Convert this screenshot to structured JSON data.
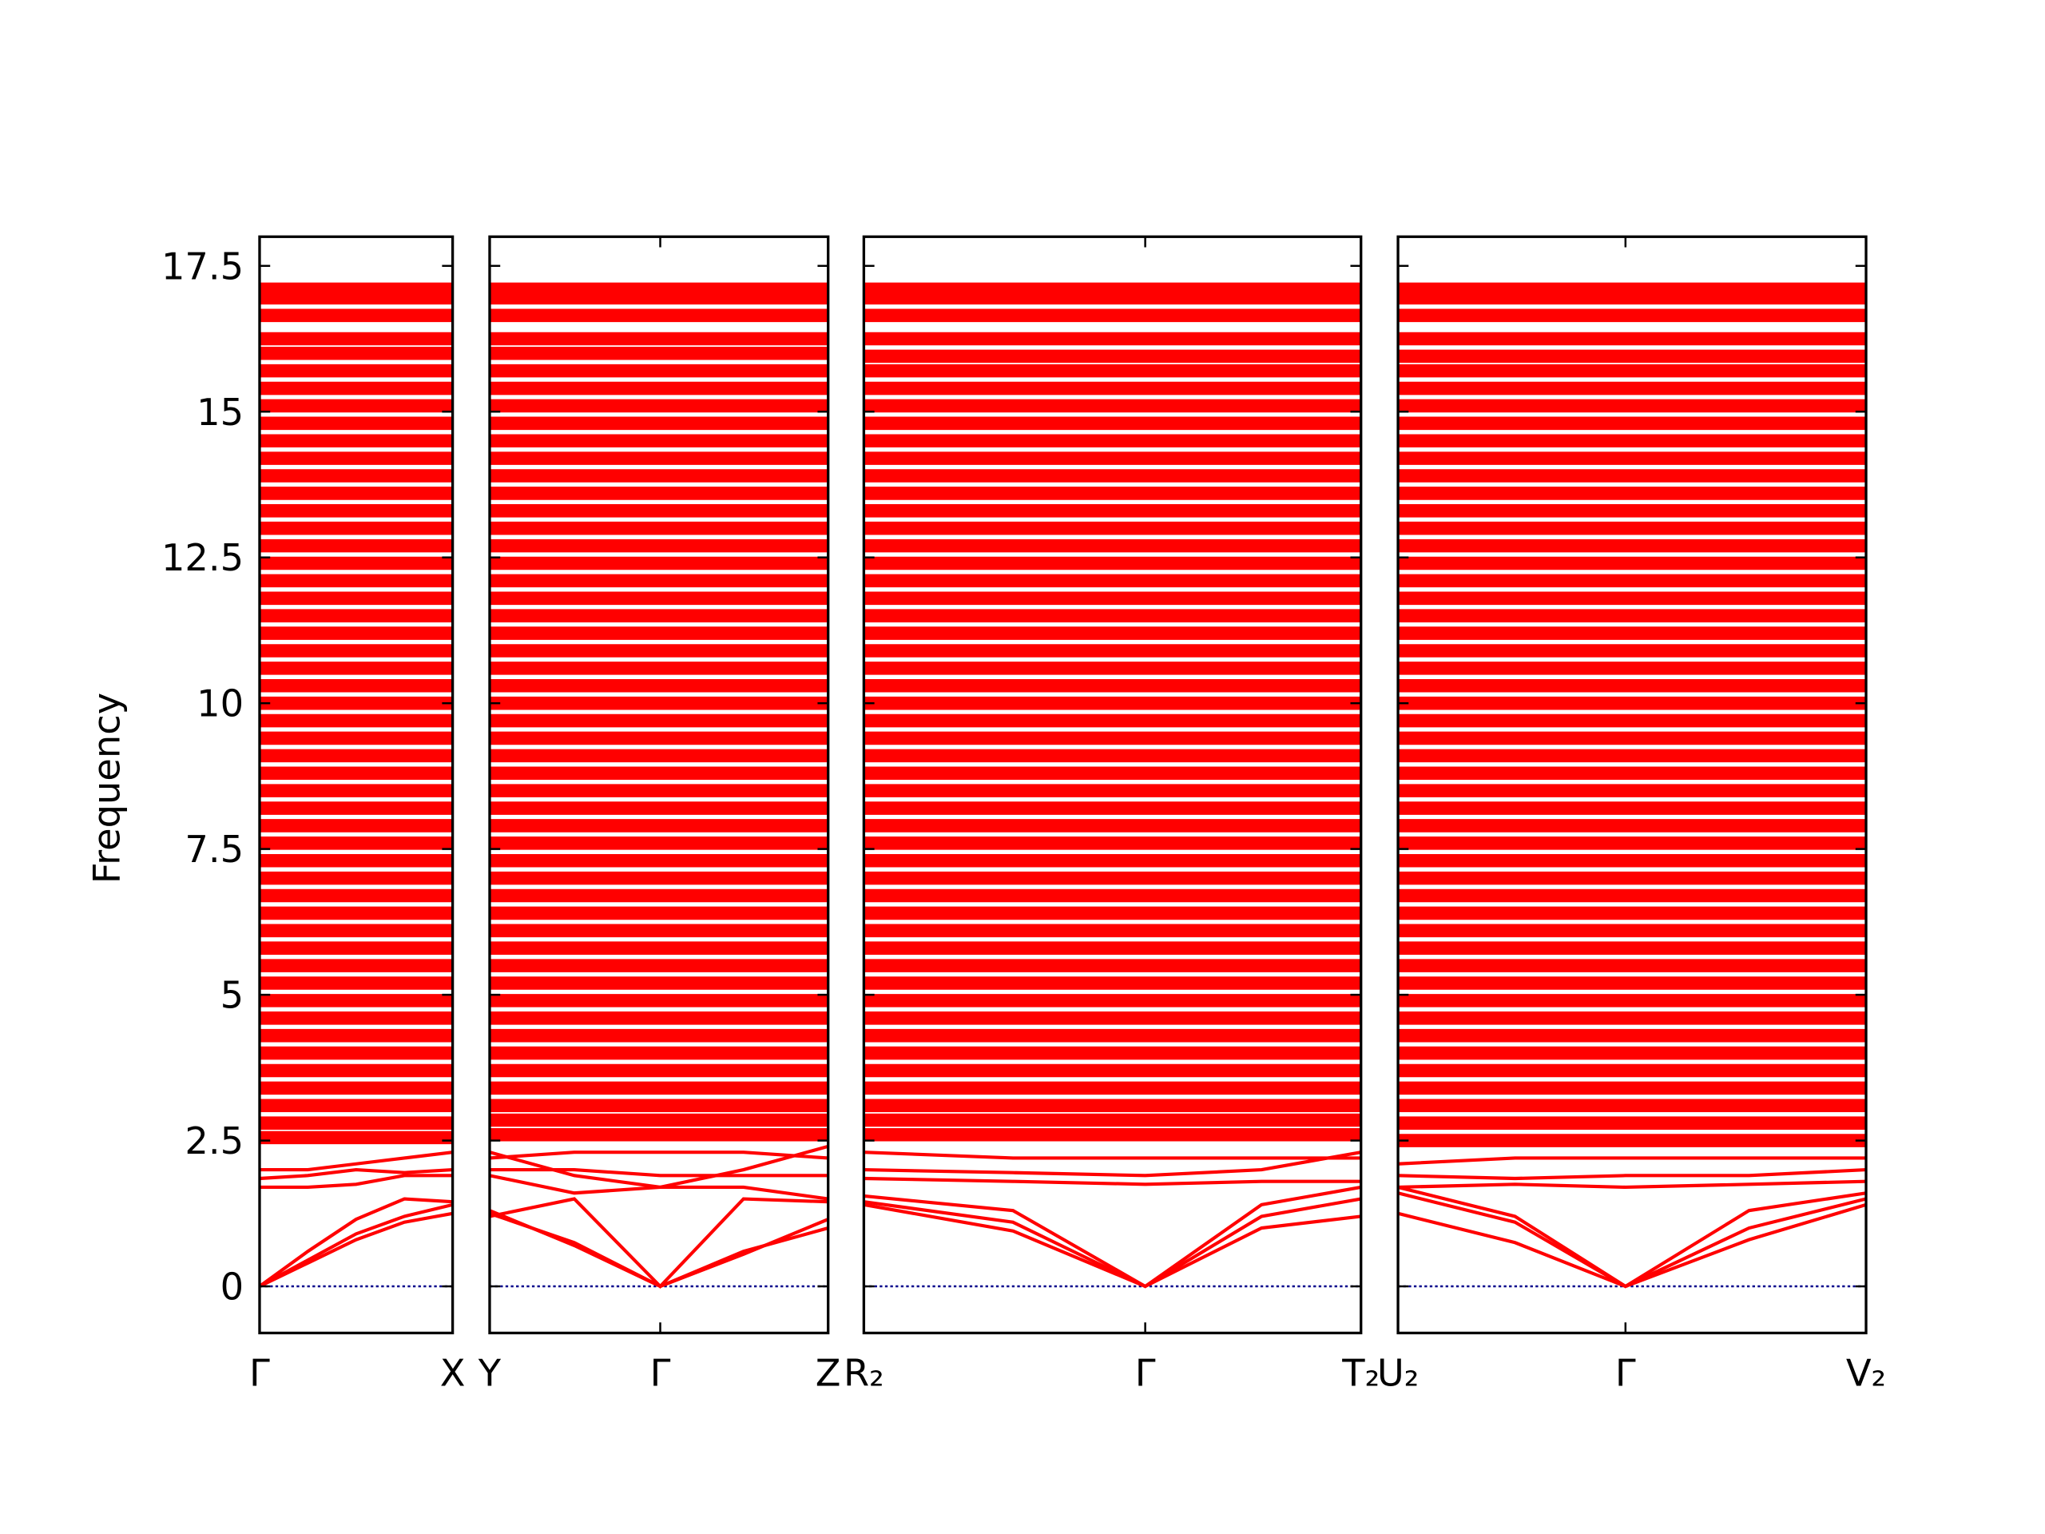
{
  "chart_data": [
    {
      "type": "line",
      "ylabel": "Frequency",
      "ylim": [
        -0.8,
        18.0
      ],
      "yticks": [
        0.0,
        2.5,
        5.0,
        7.5,
        10.0,
        12.5,
        15.0,
        17.5
      ],
      "color": "#ff0000",
      "zero_line_color": "#00008b",
      "xlim": [
        0,
        1
      ],
      "xticks": [
        {
          "value": 0,
          "label": "Γ"
        },
        {
          "value": 1,
          "label": "X"
        }
      ],
      "x": [
        0,
        0.25,
        0.5,
        0.75,
        1
      ],
      "series": [
        {
          "values": [
            0,
            0.4,
            0.8,
            1.1,
            1.25
          ]
        },
        {
          "values": [
            0,
            0.45,
            0.9,
            1.2,
            1.4
          ]
        },
        {
          "values": [
            0,
            0.6,
            1.15,
            1.5,
            1.45
          ]
        },
        {
          "values": [
            1.7,
            1.7,
            1.75,
            1.9,
            1.9
          ]
        },
        {
          "values": [
            1.85,
            1.9,
            2.0,
            1.95,
            2.0
          ]
        },
        {
          "values": [
            2.0,
            2.0,
            2.1,
            2.2,
            2.3
          ]
        }
      ],
      "flat_bands": [
        2.55,
        2.8,
        3.1,
        3.4,
        3.7,
        4.0,
        4.3,
        4.6,
        4.9,
        5.2,
        5.5,
        5.8,
        6.1,
        6.4,
        6.7,
        7.0,
        7.3,
        7.6,
        7.9,
        8.2,
        8.5,
        8.8,
        9.1,
        9.4,
        9.7,
        10.0,
        10.3,
        10.6,
        10.9,
        11.2,
        11.5,
        11.8,
        12.1,
        12.4,
        12.7,
        13.0,
        13.3,
        13.6,
        13.9,
        14.2,
        14.5,
        14.8,
        15.1,
        15.4,
        15.7,
        16.0,
        16.25,
        16.65,
        16.95,
        17.1
      ]
    },
    {
      "type": "line",
      "color": "#ff0000",
      "zero_line_color": "#00008b",
      "xlim": [
        0,
        1
      ],
      "xticks": [
        {
          "value": 0,
          "label": "Y"
        },
        {
          "value": 0.504,
          "label": "Γ"
        },
        {
          "value": 1,
          "label": "Z"
        }
      ],
      "x": [
        0,
        0.25,
        0.504,
        0.75,
        1
      ],
      "series": [
        {
          "values": [
            1.25,
            0.75,
            0,
            0.6,
            1.0
          ]
        },
        {
          "values": [
            1.3,
            0.7,
            0,
            0.55,
            1.15
          ]
        },
        {
          "values": [
            1.2,
            1.5,
            0,
            1.5,
            1.45
          ]
        },
        {
          "values": [
            1.9,
            1.6,
            1.7,
            1.7,
            1.5
          ]
        },
        {
          "values": [
            2.3,
            1.9,
            1.7,
            2.0,
            2.4
          ]
        },
        {
          "values": [
            2.0,
            2.0,
            1.9,
            1.9,
            1.9
          ]
        },
        {
          "values": [
            2.2,
            2.3,
            2.3,
            2.3,
            2.2
          ]
        }
      ],
      "flat_bands": [
        2.6,
        2.85,
        3.1,
        3.4,
        3.7,
        4.0,
        4.3,
        4.6,
        4.9,
        5.2,
        5.5,
        5.8,
        6.1,
        6.4,
        6.7,
        7.0,
        7.3,
        7.6,
        7.9,
        8.2,
        8.5,
        8.8,
        9.1,
        9.4,
        9.7,
        10.0,
        10.3,
        10.6,
        10.9,
        11.2,
        11.5,
        11.8,
        12.1,
        12.4,
        12.7,
        13.0,
        13.3,
        13.6,
        13.9,
        14.2,
        14.5,
        14.8,
        15.1,
        15.4,
        15.7,
        16.0,
        16.25,
        16.65,
        16.95,
        17.1
      ]
    },
    {
      "type": "line",
      "color": "#ff0000",
      "zero_line_color": "#00008b",
      "xlim": [
        0,
        1
      ],
      "xticks": [
        {
          "value": 0,
          "label": "R₂"
        },
        {
          "value": 0.566,
          "label": "Γ"
        },
        {
          "value": 1,
          "label": "T₂"
        }
      ],
      "x": [
        0,
        0.3,
        0.566,
        0.8,
        1
      ],
      "series": [
        {
          "values": [
            1.55,
            1.3,
            0,
            1.0,
            1.2
          ]
        },
        {
          "values": [
            1.45,
            1.1,
            0,
            1.2,
            1.5
          ]
        },
        {
          "values": [
            1.4,
            0.95,
            0,
            1.4,
            1.7
          ]
        },
        {
          "values": [
            1.85,
            1.8,
            1.75,
            1.8,
            1.8
          ]
        },
        {
          "values": [
            2.0,
            1.95,
            1.9,
            2.0,
            2.3
          ]
        },
        {
          "values": [
            2.3,
            2.2,
            2.2,
            2.2,
            2.2
          ]
        }
      ],
      "flat_bands": [
        2.6,
        2.85,
        3.1,
        3.4,
        3.7,
        4.0,
        4.3,
        4.6,
        4.9,
        5.2,
        5.5,
        5.8,
        6.1,
        6.4,
        6.7,
        7.0,
        7.3,
        7.6,
        7.9,
        8.2,
        8.5,
        8.8,
        9.1,
        9.4,
        9.7,
        10.0,
        10.3,
        10.6,
        10.9,
        11.2,
        11.5,
        11.8,
        12.1,
        12.4,
        12.7,
        13.0,
        13.3,
        13.6,
        13.9,
        14.2,
        14.5,
        14.8,
        15.1,
        15.4,
        15.7,
        15.95,
        16.25,
        16.65,
        16.95,
        17.1
      ]
    },
    {
      "type": "line",
      "color": "#ff0000",
      "zero_line_color": "#00008b",
      "xlim": [
        0,
        1
      ],
      "xticks": [
        {
          "value": 0,
          "label": "U₂"
        },
        {
          "value": 0.486,
          "label": "Γ"
        },
        {
          "value": 1,
          "label": "V₂"
        }
      ],
      "x": [
        0,
        0.25,
        0.486,
        0.75,
        1
      ],
      "series": [
        {
          "values": [
            1.25,
            0.75,
            0,
            0.8,
            1.4
          ]
        },
        {
          "values": [
            1.6,
            1.1,
            0,
            1.0,
            1.5
          ]
        },
        {
          "values": [
            1.7,
            1.2,
            0,
            1.3,
            1.6
          ]
        },
        {
          "values": [
            1.7,
            1.75,
            1.7,
            1.75,
            1.8
          ]
        },
        {
          "values": [
            1.9,
            1.85,
            1.9,
            1.9,
            2.0
          ]
        },
        {
          "values": [
            2.1,
            2.2,
            2.2,
            2.2,
            2.2
          ]
        }
      ],
      "flat_bands": [
        2.5,
        2.8,
        3.1,
        3.4,
        3.7,
        4.0,
        4.3,
        4.6,
        4.9,
        5.2,
        5.5,
        5.8,
        6.1,
        6.4,
        6.7,
        7.0,
        7.3,
        7.6,
        7.9,
        8.2,
        8.5,
        8.8,
        9.1,
        9.4,
        9.7,
        10.0,
        10.3,
        10.6,
        10.9,
        11.2,
        11.5,
        11.8,
        12.1,
        12.4,
        12.7,
        13.0,
        13.3,
        13.6,
        13.9,
        14.2,
        14.5,
        14.8,
        15.1,
        15.4,
        15.7,
        15.95,
        16.25,
        16.65,
        16.95,
        17.1
      ]
    }
  ]
}
